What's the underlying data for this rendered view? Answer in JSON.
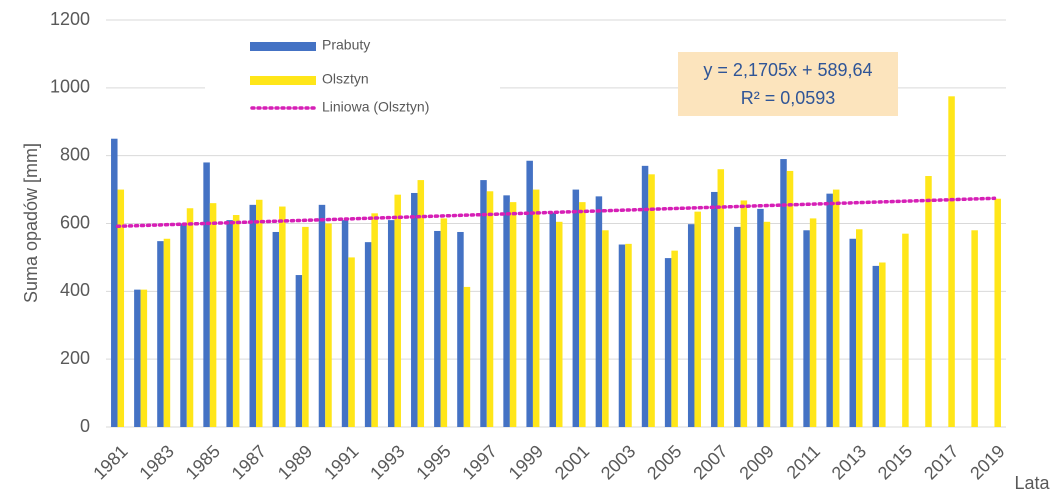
{
  "chart_data": {
    "type": "bar",
    "y_label": "Suma opadów [mm]",
    "x_label": "Lata",
    "categories": [
      "1981",
      null,
      "1983",
      null,
      "1985",
      null,
      "1987",
      null,
      "1989",
      null,
      "1991",
      null,
      "1993",
      null,
      "1995",
      null,
      "1997",
      null,
      "1999",
      null,
      "2001",
      null,
      "2003",
      null,
      "2005",
      null,
      "2007",
      null,
      "2009",
      null,
      "2011",
      null,
      "2013",
      null,
      "2015",
      null,
      "2017",
      null,
      "2019"
    ],
    "series": [
      {
        "name": "Prabuty",
        "color": "#4472c4",
        "values": [
          850,
          405,
          548,
          600,
          780,
          610,
          655,
          575,
          448,
          655,
          610,
          545,
          610,
          690,
          578,
          575,
          728,
          683,
          785,
          632,
          700,
          680,
          538,
          770,
          498,
          598,
          693,
          590,
          643,
          790,
          580,
          688,
          555,
          475,
          null,
          null,
          null,
          null,
          null
        ]
      },
      {
        "name": "Olsztyn",
        "color": "#ffe619",
        "values": [
          700,
          405,
          555,
          645,
          660,
          625,
          670,
          650,
          590,
          600,
          500,
          630,
          685,
          728,
          615,
          413,
          695,
          663,
          700,
          605,
          663,
          580,
          540,
          745,
          520,
          635,
          760,
          668,
          605,
          755,
          615,
          700,
          583,
          485,
          570,
          740,
          975,
          580,
          673
        ]
      }
    ],
    "trendline": {
      "name": "Liniowa (Olsztyn)",
      "color": "#d61fb6",
      "slope": 2.1705,
      "intercept": 589.64
    },
    "annotation": {
      "equation": "y = 2,1705x + 589,64",
      "r2": "R² = 0,0593"
    },
    "ylim": [
      0,
      1200
    ],
    "yticks": [
      0,
      200,
      400,
      600,
      800,
      1000,
      1200
    ],
    "grid": true
  }
}
